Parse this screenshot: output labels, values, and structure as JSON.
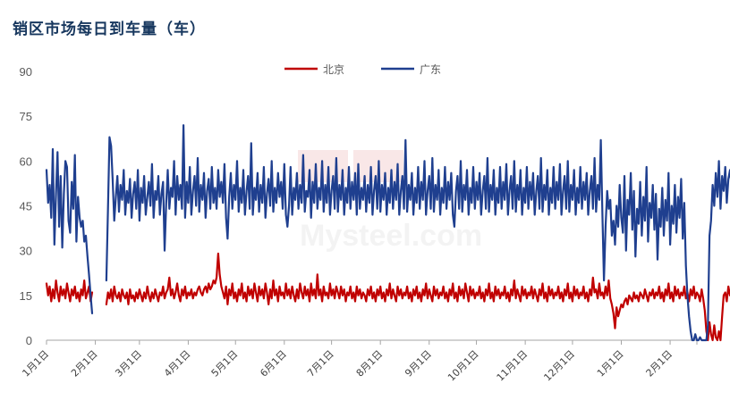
{
  "title": "销区市场每日到车量（车）",
  "chart_data": {
    "type": "line",
    "title": "销区市场每日到车量（车）",
    "xlabel": "",
    "ylabel": "",
    "ylim": [
      0,
      90
    ],
    "yticks": [
      "0",
      "15",
      "30",
      "45",
      "60",
      "75",
      "90"
    ],
    "xticks": [
      "1月1日",
      "2月1日",
      "3月1日",
      "4月1日",
      "5月1日",
      "6月1日",
      "7月1日",
      "8月1日",
      "9月1日",
      "10月1日",
      "11月1日",
      "12月1日",
      "1月1日",
      "2月1日"
    ],
    "legend_position": "top-center",
    "grid": false,
    "series": [
      {
        "name": "北京",
        "color": "#c00000",
        "segments": [
          {
            "start_day": 0,
            "values": [
              19,
              15,
              18,
              13,
              17,
              14,
              20,
              16,
              13,
              18,
              15,
              17,
              14,
              19,
              16,
              13,
              17,
              15,
              18,
              14,
              16,
              13,
              17,
              15,
              20,
              14,
              16,
              18,
              13,
              16
            ]
          },
          {
            "start_day": 38,
            "values": [
              12,
              16,
              14,
              17,
              13,
              18,
              15,
              14,
              16,
              13,
              17,
              15,
              14,
              16,
              12,
              17,
              14,
              15,
              13,
              16,
              14,
              17,
              15,
              13,
              16,
              14,
              18,
              15,
              13,
              16,
              14,
              17,
              15,
              13,
              16,
              15,
              18,
              14,
              16,
              17,
              21,
              15,
              17,
              14,
              16,
              19,
              15,
              13,
              17,
              15,
              18,
              14,
              16,
              15,
              17,
              14,
              16,
              15,
              17,
              18,
              16,
              15,
              17,
              18,
              16,
              19,
              17,
              18,
              20,
              19,
              21,
              29,
              22,
              18,
              16,
              14,
              18,
              12,
              17,
              15,
              19,
              14,
              16,
              13,
              17,
              15,
              19,
              14,
              16,
              13,
              18,
              15,
              17,
              14,
              19,
              16,
              13,
              18,
              15,
              17,
              14,
              19,
              16,
              12,
              17,
              14,
              20,
              15,
              17,
              13,
              18,
              15,
              16,
              14,
              19,
              15,
              17,
              14,
              18,
              15,
              13,
              17,
              14,
              19,
              16,
              14,
              18,
              15,
              17,
              13,
              19,
              15,
              17,
              14,
              22,
              15,
              17,
              13,
              18,
              15,
              16,
              14,
              19,
              15,
              17,
              14,
              18,
              16,
              14,
              18,
              15,
              17,
              13,
              16,
              15,
              18,
              14,
              16,
              13,
              18,
              15,
              17,
              14,
              16,
              15,
              13,
              17,
              15,
              18,
              14,
              16,
              13,
              17,
              15,
              18,
              14,
              16,
              13,
              17,
              15,
              19,
              14,
              17,
              15,
              13,
              18,
              15,
              17,
              14,
              16,
              15,
              18,
              14,
              16,
              13,
              17,
              15,
              18,
              14,
              16,
              13,
              17,
              15,
              19,
              14,
              17,
              15,
              13,
              18,
              15,
              17,
              14,
              16,
              15,
              18,
              14,
              16,
              13,
              17,
              15,
              19,
              14,
              16,
              13,
              18,
              15,
              17,
              14,
              19,
              16,
              13,
              18,
              15,
              17,
              14,
              16,
              15,
              18,
              14,
              16,
              13,
              17,
              15,
              19,
              14,
              16,
              13,
              18,
              15,
              17,
              14,
              16,
              15,
              18,
              14,
              16,
              13,
              17,
              15,
              20,
              14,
              17,
              15,
              13,
              18,
              15,
              17,
              14,
              16,
              15,
              18,
              14,
              17,
              15,
              13,
              17,
              15,
              19,
              14,
              16,
              13,
              18,
              15,
              17,
              14,
              16,
              15,
              18,
              14,
              16,
              13,
              17,
              15,
              19,
              14,
              16,
              13,
              18,
              15,
              17,
              14,
              16,
              15,
              18,
              14,
              16,
              13,
              17,
              15,
              21,
              16,
              17,
              14,
              19,
              15,
              16,
              14,
              18,
              15,
              20,
              14,
              12,
              9,
              4,
              11,
              8,
              10,
              12,
              11,
              13,
              14,
              12,
              15,
              14,
              13,
              16,
              14,
              15,
              13,
              16,
              15,
              14,
              17,
              15,
              13,
              16,
              15,
              17,
              14,
              16,
              15,
              18,
              14,
              16,
              13,
              17,
              15,
              19,
              14,
              16,
              13,
              18,
              15,
              17,
              14,
              16,
              15,
              18,
              14,
              16,
              13,
              17,
              15,
              18,
              14,
              16,
              15,
              13,
              17,
              14,
              10,
              3,
              0,
              6,
              2,
              0,
              5,
              1,
              0,
              3,
              0,
              8,
              15,
              16,
              13,
              18,
              15,
              17,
              14,
              16,
              15,
              18,
              14,
              16,
              13,
              17,
              15,
              19,
              14,
              16,
              13,
              18,
              15,
              17,
              14,
              16,
              15,
              18,
              14,
              16,
              13,
              17,
              15,
              18,
              14,
              17
            ]
          }
        ]
      },
      {
        "name": "广东",
        "color": "#1f3f8f",
        "segments": [
          {
            "start_day": 0,
            "values": [
              57,
              46,
              52,
              41,
              64,
              32,
              49,
              63,
              38,
              55,
              31,
              49,
              60,
              58,
              40,
              36,
              53,
              44,
              62,
              33,
              48,
              41,
              38,
              40,
              33,
              35,
              28,
              22,
              15,
              9
            ]
          },
          {
            "start_day": 38,
            "values": [
              20,
              44,
              68,
              65,
              54,
              40,
              48,
              55,
              43,
              52,
              47,
              57,
              42,
              50,
              46,
              54,
              41,
              49,
              53,
              44,
              57,
              40,
              51,
              46,
              55,
              42,
              48,
              53,
              45,
              59,
              41,
              50,
              47,
              55,
              42,
              49,
              53,
              30,
              46,
              57,
              44,
              51,
              48,
              60,
              42,
              55,
              47,
              52,
              44,
              72,
              41,
              53,
              46,
              58,
              42,
              50,
              55,
              45,
              61,
              43,
              52,
              47,
              56,
              41,
              50,
              54,
              44,
              58,
              46,
              51,
              44,
              57,
              48,
              53,
              46,
              59,
              41,
              34,
              48,
              56,
              44,
              52,
              47,
              60,
              43,
              51,
              46,
              57,
              42,
              50,
              55,
              44,
              66,
              42,
              51,
              47,
              56,
              43,
              52,
              46,
              58,
              41,
              49,
              54,
              45,
              60,
              43,
              51,
              46,
              56,
              48,
              53,
              44,
              59,
              42,
              38,
              45,
              58,
              42,
              51,
              47,
              56,
              44,
              52,
              46,
              62,
              43,
              50,
              48,
              57,
              41,
              53,
              46,
              59,
              44,
              51,
              47,
              60,
              43,
              52,
              46,
              58,
              42,
              50,
              55,
              44,
              61,
              43,
              52,
              47,
              57,
              42,
              51,
              46,
              58,
              44,
              53,
              47,
              56,
              42,
              59,
              44,
              51,
              47,
              55,
              43,
              52,
              46,
              58,
              42,
              50,
              55,
              44,
              60,
              43,
              52,
              47,
              56,
              42,
              51,
              46,
              57,
              44,
              53,
              47,
              59,
              42,
              50,
              55,
              44,
              67,
              43,
              52,
              47,
              56,
              42,
              51,
              46,
              58,
              44,
              53,
              47,
              60,
              42,
              50,
              55,
              44,
              61,
              43,
              52,
              47,
              57,
              42,
              51,
              46,
              58,
              44,
              53,
              47,
              56,
              42,
              38,
              50,
              55,
              44,
              60,
              43,
              52,
              47,
              57,
              42,
              51,
              46,
              58,
              44,
              53,
              47,
              56,
              42,
              50,
              55,
              44,
              61,
              43,
              52,
              47,
              57,
              42,
              51,
              46,
              58,
              44,
              53,
              47,
              59,
              42,
              50,
              55,
              44,
              60,
              43,
              52,
              47,
              57,
              42,
              51,
              46,
              58,
              44,
              53,
              47,
              56,
              42,
              50,
              55,
              44,
              61,
              43,
              52,
              47,
              57,
              42,
              51,
              46,
              58,
              44,
              53,
              47,
              59,
              42,
              50,
              55,
              44,
              60,
              43,
              52,
              47,
              57,
              42,
              51,
              46,
              58,
              44,
              53,
              47,
              56,
              42,
              50,
              55,
              44,
              61,
              43,
              52,
              47,
              67,
              42,
              20,
              38,
              50,
              44,
              47,
              35,
              40,
              32,
              45,
              38,
              52,
              41,
              36,
              55,
              30,
              47,
              42,
              56,
              37,
              50,
              28,
              44,
              39,
              53,
              35,
              48,
              40,
              58,
              33,
              46,
              41,
              52,
              37,
              49,
              27,
              44,
              38,
              51,
              35,
              47,
              40,
              56,
              32,
              45,
              39,
              52,
              36,
              48,
              41,
              54,
              34,
              46,
              25,
              15,
              8,
              3,
              0,
              0,
              2,
              0,
              0,
              1,
              0,
              0,
              0,
              0,
              5,
              35,
              40,
              52,
              45,
              56,
              48,
              60,
              44,
              55,
              50,
              58,
              46,
              54,
              57,
              52,
              59,
              55,
              56,
              58,
              54,
              57,
              56,
              58,
              55,
              64,
              57
            ]
          }
        ]
      }
    ]
  }
}
